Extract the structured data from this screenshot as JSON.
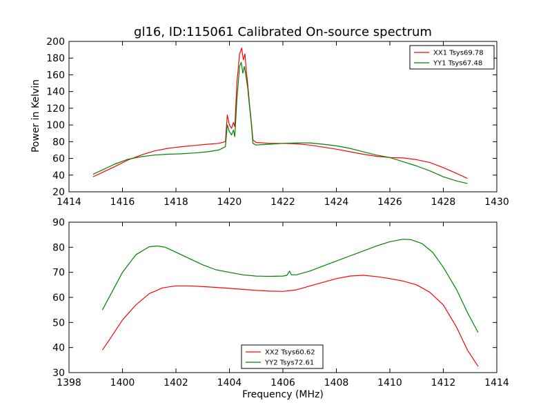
{
  "figure": {
    "title": "gl16, ID:115061 Calibrated On-source spectrum"
  },
  "chart_data": [
    {
      "type": "line",
      "title": "gl16, ID:115061 Calibrated On-source spectrum",
      "xlabel": "",
      "ylabel": "Power in Kelvin",
      "xlim": [
        1414,
        1430
      ],
      "ylim": [
        20,
        200
      ],
      "xticks": [
        1414,
        1416,
        1418,
        1420,
        1422,
        1424,
        1426,
        1428,
        1430
      ],
      "yticks": [
        20,
        40,
        60,
        80,
        100,
        120,
        140,
        160,
        180,
        200
      ],
      "grid": false,
      "legend_position": "upper-right",
      "series": [
        {
          "name": "XX1 Tsys69.78",
          "color": "#ff0000",
          "points": [
            [
              1414.9,
              38
            ],
            [
              1415.3,
              44
            ],
            [
              1415.7,
              50
            ],
            [
              1416.2,
              58
            ],
            [
              1416.7,
              64
            ],
            [
              1417.2,
              69
            ],
            [
              1417.7,
              72
            ],
            [
              1418.2,
              74
            ],
            [
              1418.7,
              75.5
            ],
            [
              1419.2,
              77
            ],
            [
              1419.6,
              78
            ],
            [
              1419.85,
              80
            ],
            [
              1419.92,
              112
            ],
            [
              1420.0,
              100
            ],
            [
              1420.08,
              96
            ],
            [
              1420.15,
              103
            ],
            [
              1420.2,
              98
            ],
            [
              1420.28,
              150
            ],
            [
              1420.38,
              185
            ],
            [
              1420.46,
              192
            ],
            [
              1420.52,
              178
            ],
            [
              1420.58,
              185
            ],
            [
              1420.63,
              165
            ],
            [
              1420.68,
              150
            ],
            [
              1420.75,
              125
            ],
            [
              1420.8,
              110
            ],
            [
              1420.88,
              82
            ],
            [
              1421.0,
              79
            ],
            [
              1421.5,
              78
            ],
            [
              1422.0,
              78
            ],
            [
              1422.5,
              77.5
            ],
            [
              1423.0,
              76
            ],
            [
              1423.5,
              73.5
            ],
            [
              1424.0,
              71
            ],
            [
              1424.5,
              68
            ],
            [
              1425.0,
              65
            ],
            [
              1425.5,
              62.5
            ],
            [
              1426.0,
              61
            ],
            [
              1426.5,
              60.5
            ],
            [
              1427.0,
              58.5
            ],
            [
              1427.5,
              55
            ],
            [
              1428.0,
              49
            ],
            [
              1428.5,
              42
            ],
            [
              1428.9,
              36
            ]
          ]
        },
        {
          "name": "YY1 Tsys67.48",
          "color": "#008000",
          "points": [
            [
              1414.9,
              41
            ],
            [
              1415.3,
              47
            ],
            [
              1415.7,
              53
            ],
            [
              1416.2,
              59
            ],
            [
              1416.7,
              62
            ],
            [
              1417.2,
              64
            ],
            [
              1417.7,
              65
            ],
            [
              1418.2,
              65.5
            ],
            [
              1418.7,
              66.5
            ],
            [
              1419.2,
              68
            ],
            [
              1419.6,
              70
            ],
            [
              1419.85,
              74
            ],
            [
              1419.92,
              100
            ],
            [
              1420.0,
              92
            ],
            [
              1420.08,
              88
            ],
            [
              1420.15,
              94
            ],
            [
              1420.2,
              86
            ],
            [
              1420.28,
              130
            ],
            [
              1420.38,
              170
            ],
            [
              1420.44,
              175
            ],
            [
              1420.5,
              162
            ],
            [
              1420.56,
              170
            ],
            [
              1420.62,
              158
            ],
            [
              1420.68,
              145
            ],
            [
              1420.75,
              122
            ],
            [
              1420.8,
              108
            ],
            [
              1420.88,
              78
            ],
            [
              1421.0,
              76
            ],
            [
              1421.5,
              77
            ],
            [
              1422.0,
              78
            ],
            [
              1422.5,
              78.5
            ],
            [
              1423.0,
              78.5
            ],
            [
              1423.5,
              77
            ],
            [
              1424.0,
              75
            ],
            [
              1424.5,
              72
            ],
            [
              1425.0,
              68
            ],
            [
              1425.5,
              64
            ],
            [
              1426.0,
              61
            ],
            [
              1426.5,
              56
            ],
            [
              1427.0,
              51
            ],
            [
              1427.5,
              45
            ],
            [
              1428.0,
              38
            ],
            [
              1428.5,
              33
            ],
            [
              1428.9,
              30
            ]
          ]
        }
      ]
    },
    {
      "type": "line",
      "title": "",
      "xlabel": "Frequency (MHz)",
      "ylabel": "",
      "xlim": [
        1398,
        1414
      ],
      "ylim": [
        30,
        90
      ],
      "xticks": [
        1398,
        1400,
        1402,
        1404,
        1406,
        1408,
        1410,
        1412,
        1414
      ],
      "yticks": [
        30,
        40,
        50,
        60,
        70,
        80,
        90
      ],
      "grid": false,
      "legend_position": "lower-center",
      "series": [
        {
          "name": "XX2 Tsys60.62",
          "color": "#ff0000",
          "points": [
            [
              1399.25,
              39
            ],
            [
              1399.6,
              44.5
            ],
            [
              1400.0,
              51
            ],
            [
              1400.5,
              57
            ],
            [
              1401.0,
              61.5
            ],
            [
              1401.5,
              63.8
            ],
            [
              1402.0,
              64.6
            ],
            [
              1402.5,
              64.6
            ],
            [
              1403.0,
              64.3
            ],
            [
              1403.5,
              64
            ],
            [
              1404.0,
              63.6
            ],
            [
              1404.5,
              63.2
            ],
            [
              1405.0,
              62.8
            ],
            [
              1405.5,
              62.5
            ],
            [
              1406.0,
              62.4
            ],
            [
              1406.5,
              63
            ],
            [
              1407.0,
              64.5
            ],
            [
              1407.5,
              66
            ],
            [
              1408.0,
              67.5
            ],
            [
              1408.5,
              68.5
            ],
            [
              1409.0,
              68.8
            ],
            [
              1409.5,
              68.3
            ],
            [
              1410.0,
              67.5
            ],
            [
              1410.5,
              66.5
            ],
            [
              1411.0,
              65
            ],
            [
              1411.5,
              62
            ],
            [
              1412.0,
              57
            ],
            [
              1412.5,
              48
            ],
            [
              1412.9,
              39
            ],
            [
              1413.3,
              32.5
            ]
          ]
        },
        {
          "name": "YY2 Tsys72.61",
          "color": "#008000",
          "points": [
            [
              1399.25,
              55
            ],
            [
              1399.6,
              62
            ],
            [
              1400.0,
              70
            ],
            [
              1400.5,
              77
            ],
            [
              1401.0,
              80.2
            ],
            [
              1401.3,
              80.5
            ],
            [
              1401.6,
              80
            ],
            [
              1402.0,
              78
            ],
            [
              1402.5,
              75.5
            ],
            [
              1403.0,
              73
            ],
            [
              1403.5,
              71
            ],
            [
              1404.0,
              70
            ],
            [
              1404.5,
              69
            ],
            [
              1405.0,
              68.5
            ],
            [
              1405.5,
              68.4
            ],
            [
              1406.0,
              68.5
            ],
            [
              1406.15,
              68.8
            ],
            [
              1406.25,
              70.5
            ],
            [
              1406.32,
              69
            ],
            [
              1406.5,
              69
            ],
            [
              1407.0,
              70.5
            ],
            [
              1407.5,
              72.5
            ],
            [
              1408.0,
              74.5
            ],
            [
              1408.5,
              76.5
            ],
            [
              1409.0,
              78.5
            ],
            [
              1409.5,
              80.5
            ],
            [
              1410.0,
              82.2
            ],
            [
              1410.5,
              83.2
            ],
            [
              1410.8,
              83
            ],
            [
              1411.2,
              81.5
            ],
            [
              1411.6,
              78
            ],
            [
              1412.0,
              72
            ],
            [
              1412.5,
              63
            ],
            [
              1412.9,
              54
            ],
            [
              1413.3,
              46
            ]
          ]
        }
      ]
    }
  ]
}
